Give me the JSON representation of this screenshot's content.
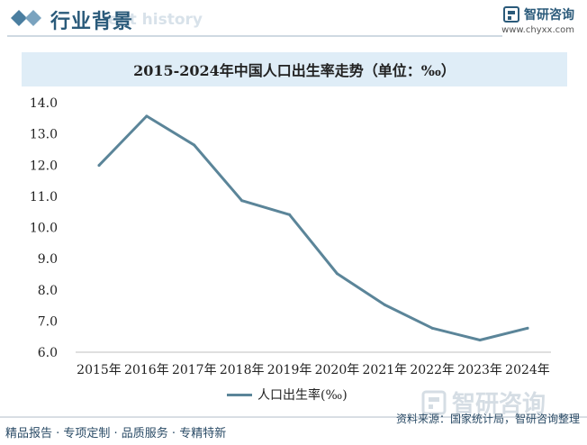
{
  "header": {
    "title": "行业背景",
    "watermark": "ent history",
    "logo_name": "智研咨询",
    "logo_url": "www.chyxx.com"
  },
  "chart_title": "2015-2024年中国人口出生率走势（单位：‰）",
  "legend_label": "人口出生率(‰)",
  "footer": {
    "left": "精品报告 · 专项定制 · 品质服务 · 专精特新",
    "right": "资料来源：国家统计局，智研咨询整理",
    "watermark_logo": "智研咨询"
  },
  "colors": {
    "line": "#5b8599",
    "accent": "#2a5a7a",
    "title_bar": "#dfedf7"
  },
  "chart_data": {
    "type": "line",
    "title": "2015-2024年中国人口出生率走势（单位：‰）",
    "categories": [
      "2015年",
      "2016年",
      "2017年",
      "2018年",
      "2019年",
      "2020年",
      "2021年",
      "2022年",
      "2023年",
      "2024年"
    ],
    "series": [
      {
        "name": "人口出生率(‰)",
        "values": [
          11.99,
          13.57,
          12.64,
          10.86,
          10.41,
          8.52,
          7.52,
          6.77,
          6.39,
          6.77
        ]
      }
    ],
    "y_ticks": [
      "14.0",
      "13.0",
      "12.0",
      "11.0",
      "10.0",
      "9.0",
      "8.0",
      "7.0",
      "6.0"
    ],
    "ylim": [
      6,
      14
    ],
    "legend_position": "bottom",
    "grid": false
  }
}
